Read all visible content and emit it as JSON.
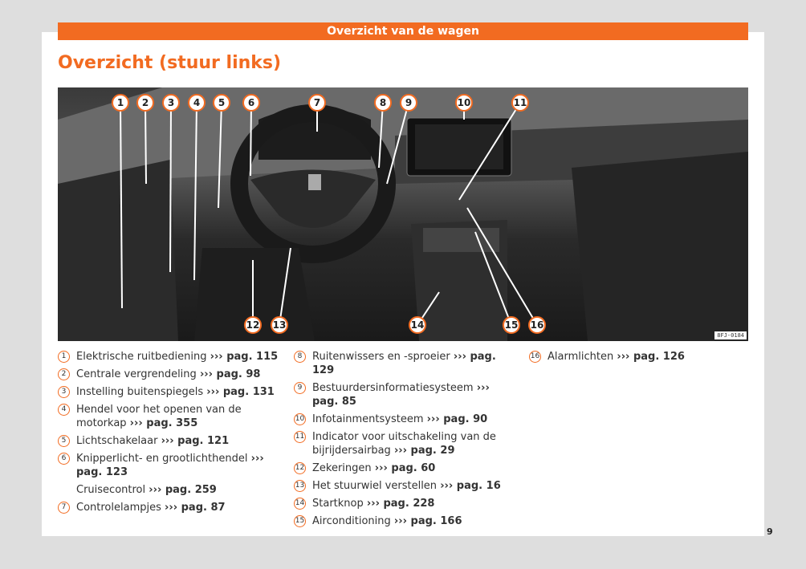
{
  "header": {
    "banner": "Overzicht van de wagen",
    "title": "Overzicht (stuur links)"
  },
  "image": {
    "code": "8FJ-0184",
    "callouts": [
      "1",
      "2",
      "3",
      "4",
      "5",
      "6",
      "7",
      "8",
      "9",
      "10",
      "11",
      "12",
      "13",
      "14",
      "15",
      "16"
    ]
  },
  "legend": [
    {
      "n": "1",
      "text": "Elektrische ruitbediening",
      "ref": "››› pag. 115"
    },
    {
      "n": "2",
      "text": "Centrale vergrendeling",
      "ref": "››› pag. 98"
    },
    {
      "n": "3",
      "text": "Instelling buitenspiegels",
      "ref": "››› pag. 131"
    },
    {
      "n": "4",
      "text": "Hendel voor het openen van de motorkap",
      "ref": "››› pag. 355"
    },
    {
      "n": "5",
      "text": "Lichtschakelaar",
      "ref": "››› pag. 121"
    },
    {
      "n": "6",
      "text": "Knipperlicht- en grootlichthendel",
      "ref": "››› pag. 123"
    },
    {
      "n": "",
      "text": "Cruisecontrol",
      "ref": "››› pag. 259"
    },
    {
      "n": "7",
      "text": "Controlelampjes",
      "ref": "››› pag. 87"
    },
    {
      "n": "8",
      "text": "Ruitenwissers en -sproeier",
      "ref": "››› pag. 129"
    },
    {
      "n": "9",
      "text": "Bestuurdersinformatiesysteem",
      "ref": "››› pag. 85"
    },
    {
      "n": "10",
      "text": "Infotainmentsysteem",
      "ref": "››› pag. 90"
    },
    {
      "n": "11",
      "text": "Indicator voor uitschakeling van de bijrijdersairbag",
      "ref": "››› pag. 29"
    },
    {
      "n": "12",
      "text": "Zekeringen",
      "ref": "››› pag. 60"
    },
    {
      "n": "13",
      "text": "Het stuurwiel verstellen",
      "ref": "››› pag. 16"
    },
    {
      "n": "14",
      "text": "Startknop",
      "ref": "››› pag. 228"
    },
    {
      "n": "15",
      "text": "Airconditioning",
      "ref": "››› pag. 166"
    },
    {
      "n": "16",
      "text": "Alarmlichten",
      "ref": "››› pag. 126"
    }
  ],
  "page_number": "9",
  "colors": {
    "accent": "#f26b21"
  }
}
